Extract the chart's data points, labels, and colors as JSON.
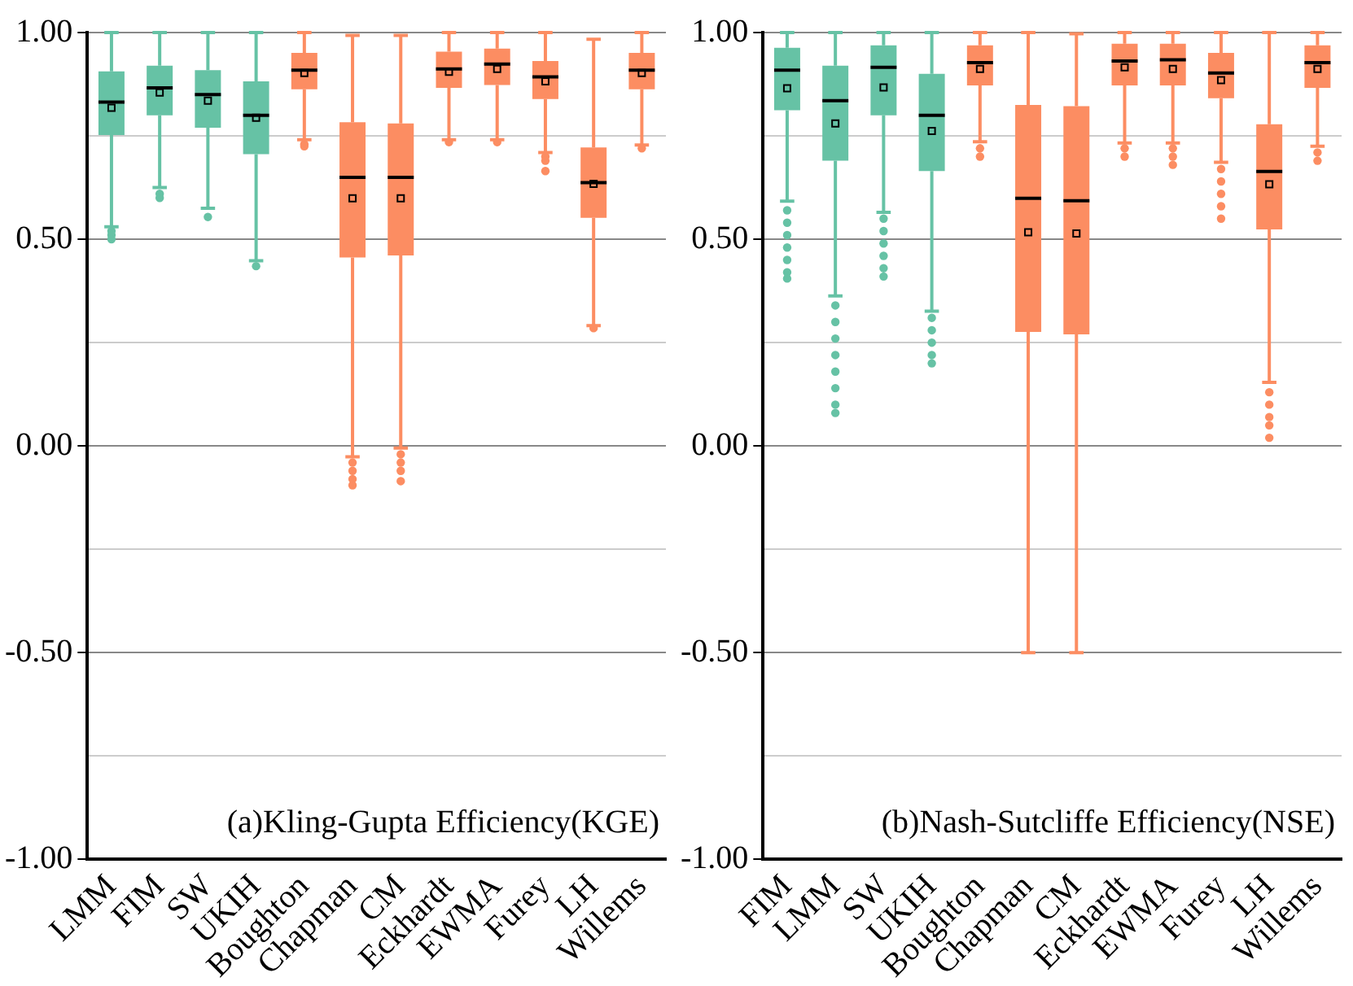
{
  "chart_data": [
    {
      "type": "box",
      "annotations": [
        "(a)Kling-Gupta Efficiency(KGE)"
      ],
      "categories": [
        "LMM",
        "FIM",
        "SW",
        "UKIH",
        "Boughton",
        "Chapman",
        "CM",
        "Eckhardt",
        "EWMA",
        "Furey",
        "LH",
        "Willems"
      ],
      "colors": [
        "#66c2a5",
        "#66c2a5",
        "#66c2a5",
        "#66c2a5",
        "#fc8d62",
        "#fc8d62",
        "#fc8d62",
        "#fc8d62",
        "#fc8d62",
        "#fc8d62",
        "#fc8d62",
        "#fc8d62"
      ],
      "boxes": [
        {
          "low": 0.53,
          "q1": 0.752,
          "median": 0.832,
          "q3": 0.906,
          "high": 1.0,
          "mean": 0.818,
          "outliers": [
            0.52,
            0.51,
            0.5
          ]
        },
        {
          "low": 0.625,
          "q1": 0.8,
          "median": 0.866,
          "q3": 0.92,
          "high": 1.0,
          "mean": 0.855,
          "outliers": [
            0.61,
            0.6
          ]
        },
        {
          "low": 0.575,
          "q1": 0.77,
          "median": 0.85,
          "q3": 0.909,
          "high": 1.0,
          "mean": 0.835,
          "outliers": [
            0.554
          ]
        },
        {
          "low": 0.448,
          "q1": 0.706,
          "median": 0.8,
          "q3": 0.882,
          "high": 1.0,
          "mean": 0.794,
          "outliers": [
            0.435
          ]
        },
        {
          "low": 0.741,
          "q1": 0.863,
          "median": 0.909,
          "q3": 0.951,
          "high": 1.0,
          "mean": 0.902,
          "outliers": [
            0.73,
            0.725
          ]
        },
        {
          "low": -0.026,
          "q1": 0.456,
          "median": 0.65,
          "q3": 0.783,
          "high": 0.993,
          "mean": 0.599,
          "outliers": [
            -0.04,
            -0.06,
            -0.08,
            -0.095
          ]
        },
        {
          "low": -0.005,
          "q1": 0.461,
          "median": 0.65,
          "q3": 0.78,
          "high": 0.993,
          "mean": 0.599,
          "outliers": [
            -0.02,
            -0.04,
            -0.06,
            -0.085
          ]
        },
        {
          "low": 0.741,
          "q1": 0.866,
          "median": 0.912,
          "q3": 0.954,
          "high": 1.0,
          "mean": 0.905,
          "outliers": [
            0.735
          ]
        },
        {
          "low": 0.741,
          "q1": 0.873,
          "median": 0.924,
          "q3": 0.961,
          "high": 1.0,
          "mean": 0.912,
          "outliers": [
            0.735
          ]
        },
        {
          "low": 0.71,
          "q1": 0.839,
          "median": 0.893,
          "q3": 0.931,
          "high": 1.0,
          "mean": 0.882,
          "outliers": [
            0.7,
            0.69,
            0.665
          ]
        },
        {
          "low": 0.291,
          "q1": 0.552,
          "median": 0.637,
          "q3": 0.722,
          "high": 0.984,
          "mean": 0.634,
          "outliers": [
            0.285
          ]
        },
        {
          "low": 0.728,
          "q1": 0.863,
          "median": 0.909,
          "q3": 0.951,
          "high": 1.0,
          "mean": 0.902,
          "outliers": [
            0.72
          ]
        }
      ],
      "ylim": [
        -1,
        1
      ],
      "yticks": [
        {
          "value": -1,
          "label": "-1.00"
        },
        {
          "value": -0.75,
          "label": null
        },
        {
          "value": -0.5,
          "label": "-0.50"
        },
        {
          "value": -0.25,
          "label": null
        },
        {
          "value": 0,
          "label": "0.00"
        },
        {
          "value": 0.25,
          "label": null
        },
        {
          "value": 0.5,
          "label": "0.50"
        },
        {
          "value": 0.75,
          "label": null
        },
        {
          "value": 1,
          "label": "1.00"
        }
      ],
      "grid": "y"
    },
    {
      "type": "box",
      "annotations": [
        "(b)Nash-Sutcliffe Efficiency(NSE)"
      ],
      "categories": [
        "FIM",
        "LMM",
        "SW",
        "UKIH",
        "Boughton",
        "Chapman",
        "CM",
        "Eckhardt",
        "EWMA",
        "Furey",
        "LH",
        "Willems"
      ],
      "colors": [
        "#66c2a5",
        "#66c2a5",
        "#66c2a5",
        "#66c2a5",
        "#fc8d62",
        "#fc8d62",
        "#fc8d62",
        "#fc8d62",
        "#fc8d62",
        "#fc8d62",
        "#fc8d62",
        "#fc8d62"
      ],
      "boxes": [
        {
          "low": 0.592,
          "q1": 0.812,
          "median": 0.909,
          "q3": 0.963,
          "high": 1.0,
          "mean": 0.865,
          "outliers": [
            0.57,
            0.54,
            0.51,
            0.48,
            0.45,
            0.42,
            0.405
          ]
        },
        {
          "low": 0.363,
          "q1": 0.69,
          "median": 0.835,
          "q3": 0.92,
          "high": 1.0,
          "mean": 0.78,
          "outliers": [
            0.34,
            0.3,
            0.26,
            0.22,
            0.18,
            0.14,
            0.1,
            0.08
          ]
        },
        {
          "low": 0.565,
          "q1": 0.8,
          "median": 0.916,
          "q3": 0.969,
          "high": 1.0,
          "mean": 0.867,
          "outliers": [
            0.55,
            0.52,
            0.49,
            0.46,
            0.43,
            0.41
          ]
        },
        {
          "low": 0.326,
          "q1": 0.665,
          "median": 0.8,
          "q3": 0.9,
          "high": 1.0,
          "mean": 0.762,
          "outliers": [
            0.31,
            0.28,
            0.25,
            0.22,
            0.2
          ]
        },
        {
          "low": 0.736,
          "q1": 0.872,
          "median": 0.927,
          "q3": 0.969,
          "high": 1.0,
          "mean": 0.912,
          "outliers": [
            0.72,
            0.7
          ]
        },
        {
          "low": -0.5,
          "q1": 0.276,
          "median": 0.599,
          "q3": 0.825,
          "high": 1.0,
          "mean": 0.517
        },
        {
          "low": -0.5,
          "q1": 0.27,
          "median": 0.593,
          "q3": 0.822,
          "high": 0.997,
          "mean": 0.514
        },
        {
          "low": 0.733,
          "q1": 0.872,
          "median": 0.931,
          "q3": 0.973,
          "high": 1.0,
          "mean": 0.916,
          "outliers": [
            0.72,
            0.7
          ]
        },
        {
          "low": 0.733,
          "q1": 0.872,
          "median": 0.934,
          "q3": 0.973,
          "high": 1.0,
          "mean": 0.912,
          "outliers": [
            0.72,
            0.7,
            0.68
          ]
        },
        {
          "low": 0.686,
          "q1": 0.841,
          "median": 0.902,
          "q3": 0.951,
          "high": 1.0,
          "mean": 0.885,
          "outliers": [
            0.67,
            0.64,
            0.61,
            0.58,
            0.55
          ]
        },
        {
          "low": 0.154,
          "q1": 0.524,
          "median": 0.664,
          "q3": 0.778,
          "high": 1.0,
          "mean": 0.633,
          "outliers": [
            0.13,
            0.1,
            0.07,
            0.05,
            0.02
          ]
        },
        {
          "low": 0.725,
          "q1": 0.866,
          "median": 0.927,
          "q3": 0.969,
          "high": 1.0,
          "mean": 0.912,
          "outliers": [
            0.71,
            0.69
          ]
        }
      ],
      "ylim": [
        -1,
        1
      ],
      "yticks": [
        {
          "value": -1,
          "label": "-1.00"
        },
        {
          "value": -0.75,
          "label": null
        },
        {
          "value": -0.5,
          "label": "-0.50"
        },
        {
          "value": -0.25,
          "label": null
        },
        {
          "value": 0,
          "label": "0.00"
        },
        {
          "value": 0.25,
          "label": null
        },
        {
          "value": 0.5,
          "label": "0.50"
        },
        {
          "value": 0.75,
          "label": null
        },
        {
          "value": 1,
          "label": "1.00"
        }
      ],
      "grid": "y"
    }
  ]
}
